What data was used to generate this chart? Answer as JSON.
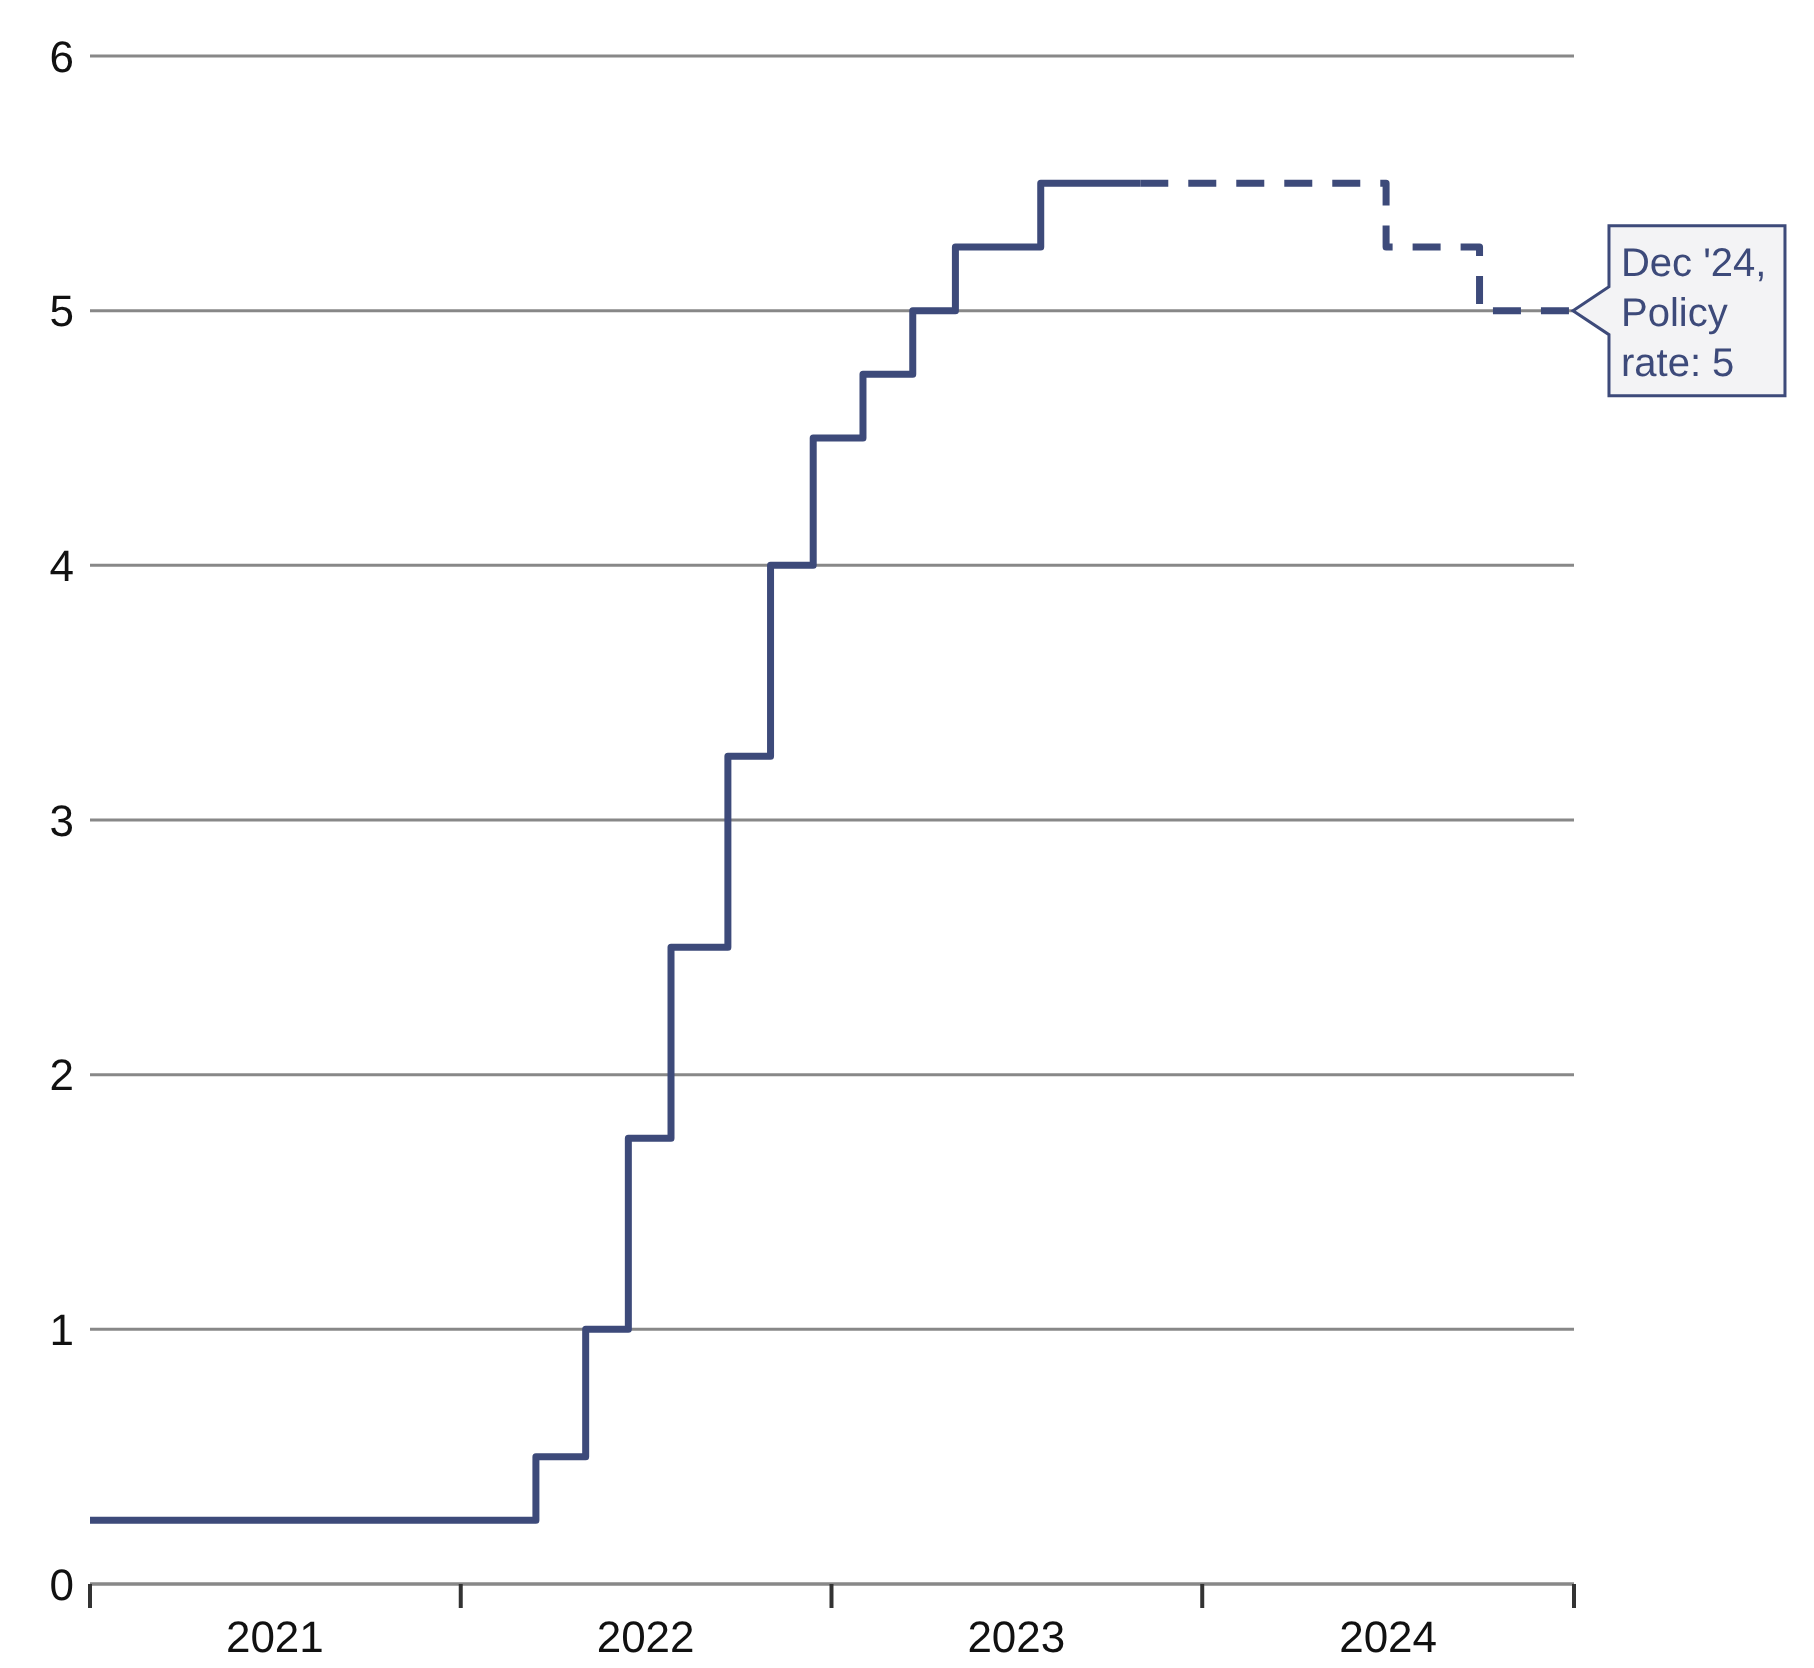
{
  "chart_data": {
    "type": "step",
    "xlim": [
      "2021-01-01",
      "2025-01-01"
    ],
    "xticks": [
      {
        "value": "2021-01-01",
        "label": null
      },
      {
        "value": "2021-07-02",
        "label": "2021"
      },
      {
        "value": "2022-01-01",
        "label": null
      },
      {
        "value": "2022-07-02",
        "label": "2022"
      },
      {
        "value": "2023-01-01",
        "label": null
      },
      {
        "value": "2023-07-02",
        "label": "2023"
      },
      {
        "value": "2024-01-01",
        "label": null
      },
      {
        "value": "2024-07-02",
        "label": "2024"
      },
      {
        "value": "2025-01-01",
        "label": null
      }
    ],
    "ylim": [
      0,
      6
    ],
    "yticks": [
      0,
      1,
      2,
      3,
      4,
      5,
      6
    ],
    "grid": "y",
    "marker": "none",
    "series": [
      {
        "color": "#3d4a7a",
        "line_style": "solid",
        "x": [
          "2021-01-01",
          "2022-03-16",
          "2022-05-04",
          "2022-06-15",
          "2022-07-27",
          "2022-09-21",
          "2022-11-02",
          "2022-12-14",
          "2023-02-01",
          "2023-03-22",
          "2023-05-03",
          "2023-07-26",
          "2023-11-01"
        ],
        "values": [
          0.25,
          0.5,
          1.0,
          1.75,
          2.5,
          3.25,
          4.0,
          4.5,
          4.75,
          5.0,
          5.25,
          5.5,
          5.5
        ]
      },
      {
        "color": "#3d4a7a",
        "line_style": "dashed",
        "x": [
          "2023-11-01",
          "2024-06-30",
          "2024-09-30",
          "2024-12-31"
        ],
        "values": [
          5.5,
          5.25,
          5.0,
          5.0
        ]
      }
    ],
    "annotations": [
      {
        "text": "Dec '24, Policy rate: 5",
        "x": "2024-12-31",
        "y": 5
      }
    ]
  }
}
